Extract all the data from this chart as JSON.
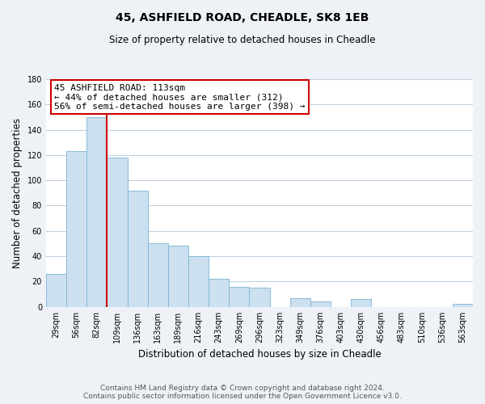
{
  "title": "45, ASHFIELD ROAD, CHEADLE, SK8 1EB",
  "subtitle": "Size of property relative to detached houses in Cheadle",
  "xlabel": "Distribution of detached houses by size in Cheadle",
  "ylabel": "Number of detached properties",
  "bin_labels": [
    "29sqm",
    "56sqm",
    "82sqm",
    "109sqm",
    "136sqm",
    "163sqm",
    "189sqm",
    "216sqm",
    "243sqm",
    "269sqm",
    "296sqm",
    "323sqm",
    "349sqm",
    "376sqm",
    "403sqm",
    "430sqm",
    "456sqm",
    "483sqm",
    "510sqm",
    "536sqm",
    "563sqm"
  ],
  "bar_values": [
    26,
    123,
    150,
    118,
    92,
    50,
    48,
    40,
    22,
    16,
    15,
    0,
    7,
    4,
    0,
    6,
    0,
    0,
    0,
    0,
    2
  ],
  "bar_color": "#cce0f0",
  "bar_edge_color": "#7ab4d4",
  "property_line_x": 3,
  "property_line_color": "#cc0000",
  "annotation_text": "45 ASHFIELD ROAD: 113sqm\n← 44% of detached houses are smaller (312)\n56% of semi-detached houses are larger (398) →",
  "annotation_box_color": "#ffffff",
  "annotation_box_edge_color": "#cc0000",
  "ylim": [
    0,
    180
  ],
  "yticks": [
    0,
    20,
    40,
    60,
    80,
    100,
    120,
    140,
    160,
    180
  ],
  "footer_line1": "Contains HM Land Registry data © Crown copyright and database right 2024.",
  "footer_line2": "Contains public sector information licensed under the Open Government Licence v3.0.",
  "background_color": "#eef2f7",
  "plot_bg_color": "#ffffff",
  "grid_color": "#c0d0e0",
  "title_fontsize": 10,
  "subtitle_fontsize": 8.5,
  "ylabel_fontsize": 8.5,
  "xlabel_fontsize": 8.5,
  "tick_fontsize": 7,
  "annotation_fontsize": 8,
  "footer_fontsize": 6.5
}
